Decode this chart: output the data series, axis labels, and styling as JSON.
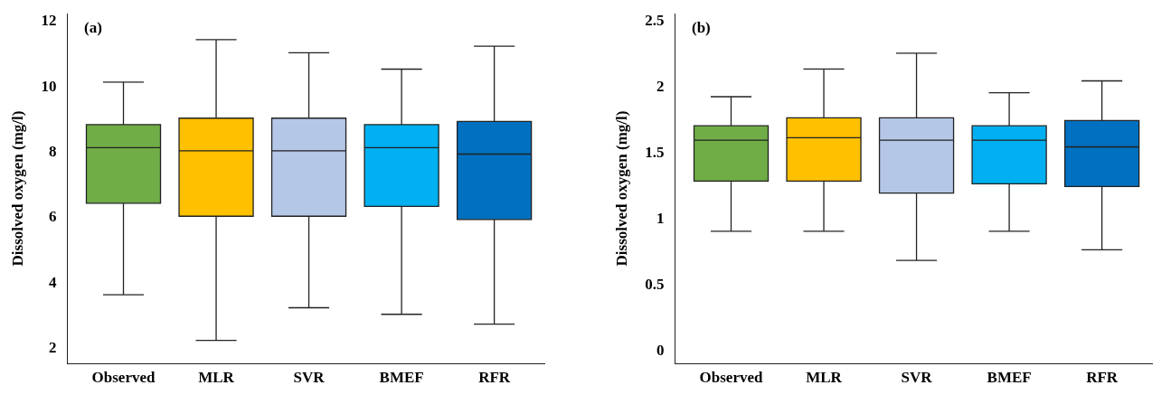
{
  "chart_data": [
    {
      "type": "box",
      "ylabel": "Dissolved oxygen (mg/l)",
      "annotations": [
        "(a)"
      ],
      "categories": [
        "Observed",
        "MLR",
        "SVR",
        "BMEF",
        "RFR"
      ],
      "colors": [
        "#70ad47",
        "#ffc000",
        "#b4c7e7",
        "#00b0f0",
        "#0070c0"
      ],
      "boxes": [
        {
          "low": 3.6,
          "q1": 6.4,
          "median": 8.1,
          "q3": 8.8,
          "high": 10.1
        },
        {
          "low": 2.2,
          "q1": 6.0,
          "median": 8.0,
          "q3": 9.0,
          "high": 11.4
        },
        {
          "low": 3.2,
          "q1": 6.0,
          "median": 8.0,
          "q3": 9.0,
          "high": 11.0
        },
        {
          "low": 3.0,
          "q1": 6.3,
          "median": 8.1,
          "q3": 8.8,
          "high": 10.5
        },
        {
          "low": 2.7,
          "q1": 5.9,
          "median": 7.9,
          "q3": 8.9,
          "high": 11.2
        }
      ],
      "ylim": [
        1.5,
        12.2
      ],
      "yticks": [
        2,
        4,
        6,
        8,
        10,
        12
      ]
    },
    {
      "type": "box",
      "ylabel": "Dissolved oxygen (mg/l)",
      "annotations": [
        "(b)"
      ],
      "categories": [
        "Observed",
        "MLR",
        "SVR",
        "BMEF",
        "RFR"
      ],
      "colors": [
        "#70ad47",
        "#ffc000",
        "#b4c7e7",
        "#00b0f0",
        "#0070c0"
      ],
      "boxes": [
        {
          "low": 0.9,
          "q1": 1.28,
          "median": 1.59,
          "q3": 1.7,
          "high": 1.92
        },
        {
          "low": 0.9,
          "q1": 1.28,
          "median": 1.61,
          "q3": 1.76,
          "high": 2.13
        },
        {
          "low": 0.68,
          "q1": 1.19,
          "median": 1.59,
          "q3": 1.76,
          "high": 2.25
        },
        {
          "low": 0.9,
          "q1": 1.26,
          "median": 1.59,
          "q3": 1.7,
          "high": 1.95
        },
        {
          "low": 0.76,
          "q1": 1.24,
          "median": 1.54,
          "q3": 1.74,
          "high": 2.04
        }
      ],
      "ylim": [
        -0.1,
        2.55
      ],
      "yticks": [
        0,
        0.5,
        1,
        1.5,
        2,
        2.5
      ]
    }
  ]
}
